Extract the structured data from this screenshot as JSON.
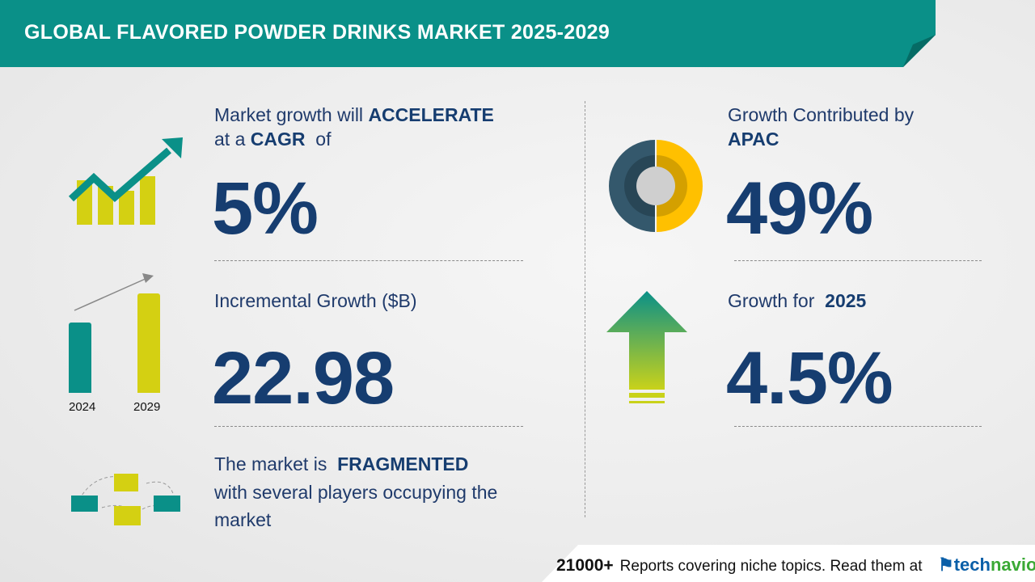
{
  "header": {
    "title": "GLOBAL FLAVORED POWDER DRINKS MARKET 2025-2029"
  },
  "cagr": {
    "line1_prefix": "Market growth will",
    "line1_bold": "ACCELERATE",
    "line2_prefix": "at a",
    "line2_bold": "CAGR",
    "line2_suffix": "of",
    "value": "5%"
  },
  "incremental": {
    "label": "Incremental Growth ($B)",
    "value": "22.98",
    "years": [
      "2024",
      "2029"
    ]
  },
  "fragmented": {
    "prefix": "The market is",
    "bold": "FRAGMENTED",
    "line2": "with several players occupying the",
    "line3": "market"
  },
  "region": {
    "label": "Growth Contributed by",
    "bold": "APAC",
    "value": "49%",
    "share": 49
  },
  "yoy": {
    "label": "Growth for",
    "year": "2025",
    "value": "4.5%"
  },
  "footer": {
    "count": "21000+",
    "text": "Reports covering niche topics. Read them at",
    "logo_a": "tech",
    "logo_b": "navio"
  },
  "colors": {
    "teal": "#0a9088",
    "yellow": "#d4d012",
    "navy": "#163d70",
    "donut_dark": "#34586c",
    "donut_yellow": "#ffc000"
  }
}
